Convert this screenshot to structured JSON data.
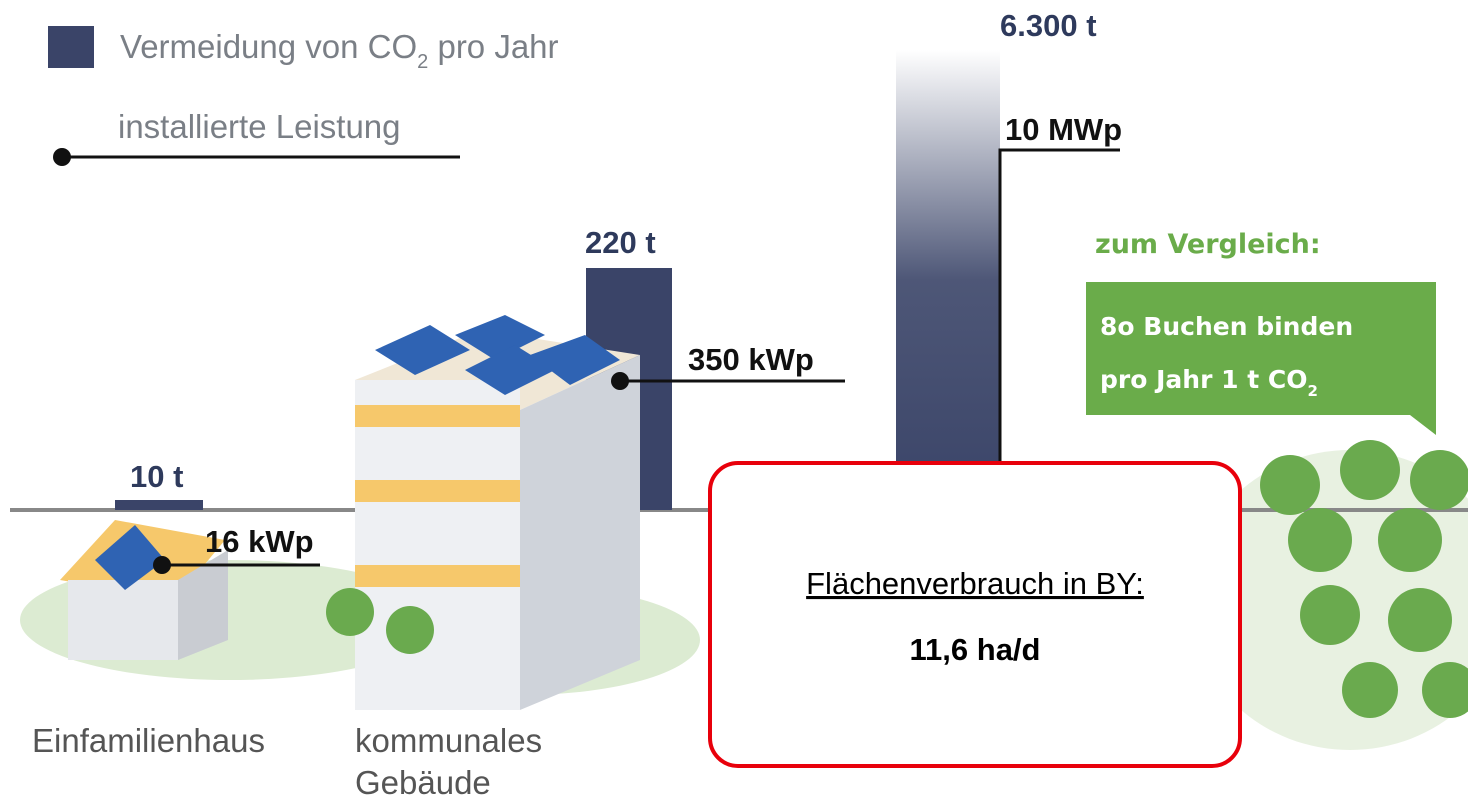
{
  "legend": {
    "co2": "Vermeidung von CO",
    "co2_sub": "2",
    "co2_rest": " pro Jahr",
    "power": "installierte Leistung"
  },
  "items": [
    {
      "co2": "10 t",
      "power": "16 kWp",
      "label": [
        "Einfamilienhaus"
      ]
    },
    {
      "co2": "220 t",
      "power": "350 kWp",
      "label": [
        "kommunales",
        "Gebäude"
      ]
    },
    {
      "co2": "6.300 t",
      "power": "10 MWp"
    }
  ],
  "comparison": {
    "heading": "zum Vergleich:",
    "line1": "8o Buchen binden",
    "line2": "pro Jahr 1 t CO",
    "line2_sub": "2"
  },
  "callout": {
    "title": "Flächenverbrauch in BY:",
    "value": "11,6 ha/d"
  }
}
